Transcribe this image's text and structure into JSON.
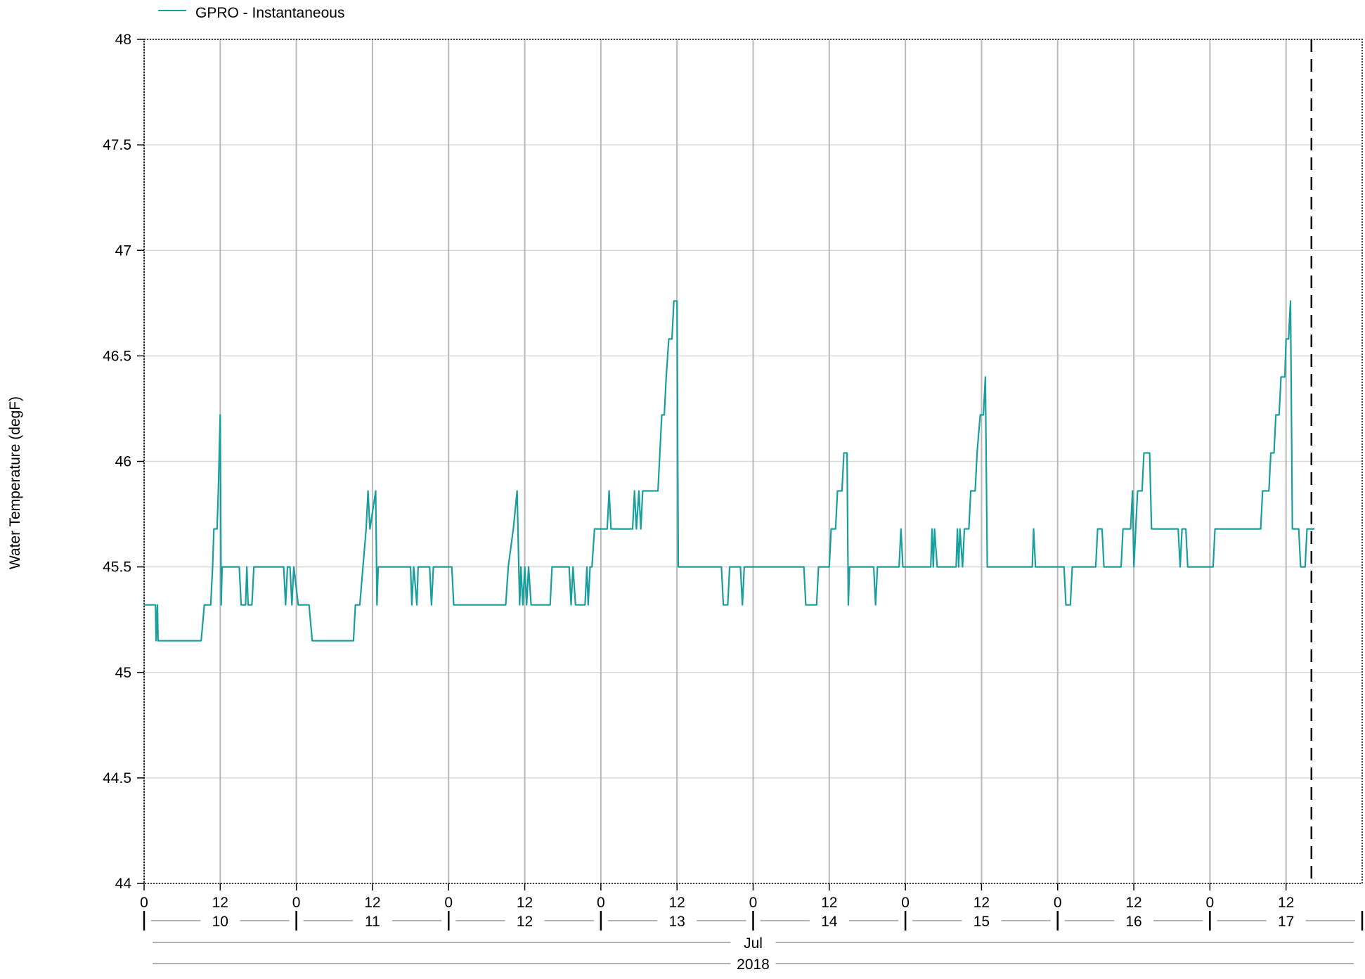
{
  "chart_data": {
    "type": "line",
    "legend": {
      "label": "GPRO - Instantaneous",
      "placement": "top-left"
    },
    "ylabel": "Water Temperature (degF)",
    "ylim": [
      44,
      48
    ],
    "yticks": [
      "44",
      "44.5",
      "45",
      "45.5",
      "46",
      "46.5",
      "47",
      "47.5",
      "48"
    ],
    "xlim_hours": [
      0,
      192
    ],
    "hour_tick_labels": [
      "0",
      "12",
      "0",
      "12",
      "0",
      "12",
      "0",
      "12",
      "0",
      "12",
      "0",
      "12",
      "0",
      "12",
      "0",
      "12"
    ],
    "day_labels": [
      "10",
      "11",
      "12",
      "13",
      "14",
      "15",
      "16",
      "17"
    ],
    "month_label": "Jul",
    "year_label": "2018",
    "now_marker_hour": 184,
    "grid": true,
    "series": [
      {
        "name": "GPRO - Instantaneous",
        "color": "#1a9e9e",
        "points": [
          [
            0,
            45.32
          ],
          [
            1.8,
            45.32
          ],
          [
            1.9,
            45.15
          ],
          [
            2.1,
            45.32
          ],
          [
            2.2,
            45.15
          ],
          [
            9,
            45.15
          ],
          [
            9.5,
            45.32
          ],
          [
            10.5,
            45.32
          ],
          [
            10.8,
            45.5
          ],
          [
            11.0,
            45.68
          ],
          [
            11.5,
            45.68
          ],
          [
            11.7,
            45.86
          ],
          [
            12.0,
            46.22
          ],
          [
            12.15,
            45.32
          ],
          [
            12.3,
            45.5
          ],
          [
            15,
            45.5
          ],
          [
            15.3,
            45.32
          ],
          [
            16,
            45.32
          ],
          [
            16.2,
            45.5
          ],
          [
            16.4,
            45.32
          ],
          [
            17,
            45.32
          ],
          [
            17.3,
            45.5
          ],
          [
            22,
            45.5
          ],
          [
            22.3,
            45.32
          ],
          [
            22.6,
            45.5
          ],
          [
            23,
            45.5
          ],
          [
            23.3,
            45.32
          ],
          [
            23.6,
            45.5
          ],
          [
            24.3,
            45.32
          ],
          [
            26,
            45.32
          ],
          [
            26.5,
            45.15
          ],
          [
            33,
            45.15
          ],
          [
            33.3,
            45.32
          ],
          [
            34,
            45.32
          ],
          [
            34.5,
            45.5
          ],
          [
            35,
            45.68
          ],
          [
            35.3,
            45.86
          ],
          [
            35.6,
            45.68
          ],
          [
            36.5,
            45.86
          ],
          [
            36.7,
            45.32
          ],
          [
            36.9,
            45.5
          ],
          [
            42,
            45.5
          ],
          [
            42.2,
            45.32
          ],
          [
            42.5,
            45.5
          ],
          [
            43,
            45.32
          ],
          [
            43.2,
            45.5
          ],
          [
            45,
            45.5
          ],
          [
            45.3,
            45.32
          ],
          [
            45.6,
            45.5
          ],
          [
            48.5,
            45.5
          ],
          [
            48.8,
            45.32
          ],
          [
            57,
            45.32
          ],
          [
            57.4,
            45.5
          ],
          [
            58.2,
            45.68
          ],
          [
            58.8,
            45.86
          ],
          [
            59.2,
            45.32
          ],
          [
            59.4,
            45.5
          ],
          [
            59.7,
            45.32
          ],
          [
            60,
            45.5
          ],
          [
            60.3,
            45.32
          ],
          [
            60.6,
            45.5
          ],
          [
            61,
            45.32
          ],
          [
            64,
            45.32
          ],
          [
            64.3,
            45.5
          ],
          [
            67,
            45.5
          ],
          [
            67.3,
            45.32
          ],
          [
            67.6,
            45.5
          ],
          [
            68,
            45.32
          ],
          [
            69.5,
            45.32
          ],
          [
            69.8,
            45.5
          ],
          [
            70,
            45.32
          ],
          [
            70.3,
            45.5
          ],
          [
            70.6,
            45.5
          ],
          [
            71,
            45.68
          ],
          [
            73,
            45.68
          ],
          [
            73.3,
            45.86
          ],
          [
            73.6,
            45.68
          ],
          [
            77,
            45.68
          ],
          [
            77.3,
            45.86
          ],
          [
            77.6,
            45.68
          ],
          [
            78,
            45.86
          ],
          [
            78.3,
            45.68
          ],
          [
            78.6,
            45.86
          ],
          [
            81,
            45.86
          ],
          [
            81.3,
            46.04
          ],
          [
            81.6,
            46.22
          ],
          [
            82,
            46.22
          ],
          [
            82.3,
            46.4
          ],
          [
            82.7,
            46.58
          ],
          [
            83.2,
            46.58
          ],
          [
            83.5,
            46.76
          ],
          [
            84,
            46.76
          ],
          [
            84.2,
            45.5
          ],
          [
            91,
            45.5
          ],
          [
            91.3,
            45.32
          ],
          [
            92,
            45.32
          ],
          [
            92.3,
            45.5
          ],
          [
            94,
            45.5
          ],
          [
            94.3,
            45.32
          ],
          [
            94.6,
            45.5
          ],
          [
            104,
            45.5
          ],
          [
            104.3,
            45.32
          ],
          [
            106,
            45.32
          ],
          [
            106.3,
            45.5
          ],
          [
            108,
            45.5
          ],
          [
            108.3,
            45.68
          ],
          [
            109,
            45.68
          ],
          [
            109.3,
            45.86
          ],
          [
            110,
            45.86
          ],
          [
            110.3,
            46.04
          ],
          [
            110.8,
            46.04
          ],
          [
            111.0,
            45.32
          ],
          [
            111.2,
            45.5
          ],
          [
            115,
            45.5
          ],
          [
            115.3,
            45.32
          ],
          [
            115.6,
            45.5
          ],
          [
            119,
            45.5
          ],
          [
            119.3,
            45.68
          ],
          [
            119.6,
            45.5
          ],
          [
            124,
            45.5
          ],
          [
            124.2,
            45.68
          ],
          [
            124.4,
            45.5
          ],
          [
            124.6,
            45.68
          ],
          [
            125,
            45.5
          ],
          [
            128,
            45.5
          ],
          [
            128.2,
            45.68
          ],
          [
            128.4,
            45.5
          ],
          [
            128.6,
            45.68
          ],
          [
            129,
            45.5
          ],
          [
            129.3,
            45.68
          ],
          [
            130,
            45.68
          ],
          [
            130.3,
            45.86
          ],
          [
            131,
            45.86
          ],
          [
            131.3,
            46.04
          ],
          [
            131.8,
            46.22
          ],
          [
            132.3,
            46.22
          ],
          [
            132.6,
            46.4
          ],
          [
            132.9,
            45.5
          ],
          [
            140,
            45.5
          ],
          [
            140.2,
            45.68
          ],
          [
            140.5,
            45.5
          ],
          [
            145,
            45.5
          ],
          [
            145.3,
            45.32
          ],
          [
            146,
            45.32
          ],
          [
            146.3,
            45.5
          ],
          [
            150,
            45.5
          ],
          [
            150.3,
            45.68
          ],
          [
            151,
            45.68
          ],
          [
            151.3,
            45.5
          ],
          [
            154,
            45.5
          ],
          [
            154.3,
            45.68
          ],
          [
            155.5,
            45.68
          ],
          [
            155.8,
            45.86
          ],
          [
            156.0,
            45.5
          ],
          [
            156.3,
            45.68
          ],
          [
            156.6,
            45.86
          ],
          [
            157.3,
            45.86
          ],
          [
            157.6,
            46.04
          ],
          [
            158.5,
            46.04
          ],
          [
            158.8,
            45.68
          ],
          [
            163,
            45.68
          ],
          [
            163.3,
            45.5
          ],
          [
            163.6,
            45.68
          ],
          [
            164.2,
            45.68
          ],
          [
            164.5,
            45.5
          ],
          [
            168.5,
            45.5
          ],
          [
            168.8,
            45.68
          ],
          [
            176,
            45.68
          ],
          [
            176.3,
            45.86
          ],
          [
            177.3,
            45.86
          ],
          [
            177.6,
            46.04
          ],
          [
            178.1,
            46.04
          ],
          [
            178.4,
            46.22
          ],
          [
            178.9,
            46.22
          ],
          [
            179.2,
            46.4
          ],
          [
            179.8,
            46.4
          ],
          [
            180,
            46.58
          ],
          [
            180.4,
            46.58
          ],
          [
            180.7,
            46.76
          ],
          [
            181.0,
            45.68
          ],
          [
            182,
            45.68
          ],
          [
            182.3,
            45.5
          ],
          [
            183,
            45.5
          ],
          [
            183.3,
            45.68
          ],
          [
            184.5,
            45.68
          ]
        ]
      }
    ]
  }
}
